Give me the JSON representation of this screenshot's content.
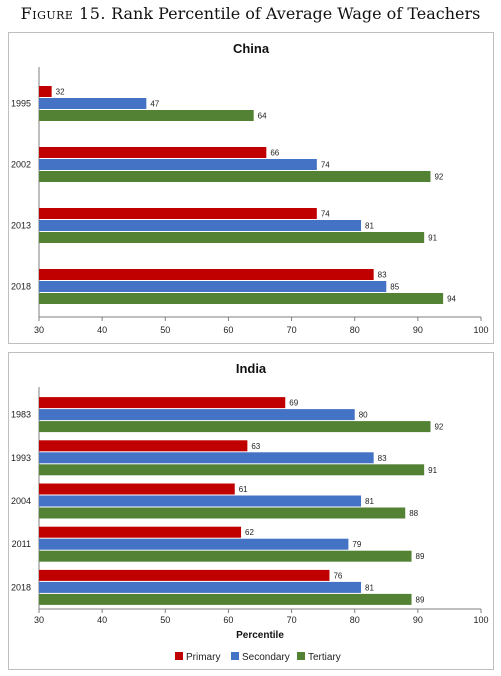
{
  "figure": {
    "label": "Figure 15.",
    "title": "Rank Percentile of Average Wage of Teachers"
  },
  "colors": {
    "primary": "#c00000",
    "secondary": "#4472c4",
    "tertiary": "#548235"
  },
  "chart_data": [
    {
      "type": "bar",
      "orientation": "horizontal",
      "title": "China",
      "xlabel": "Percentile",
      "xlim": [
        30,
        100
      ],
      "xticks": [
        30,
        40,
        50,
        60,
        70,
        80,
        90,
        100
      ],
      "categories": [
        "1995",
        "2002",
        "2013",
        "2018"
      ],
      "series": [
        {
          "name": "Primary",
          "color": "#c00000",
          "values": [
            32,
            66,
            74,
            83
          ]
        },
        {
          "name": "Secondary",
          "color": "#4472c4",
          "values": [
            47,
            74,
            81,
            85
          ]
        },
        {
          "name": "Tertiary",
          "color": "#548235",
          "values": [
            64,
            92,
            91,
            94
          ]
        }
      ],
      "legend": "bottom"
    },
    {
      "type": "bar",
      "orientation": "horizontal",
      "title": "India",
      "xlabel": "Percentile",
      "xlim": [
        30,
        100
      ],
      "xticks": [
        30,
        40,
        50,
        60,
        70,
        80,
        90,
        100
      ],
      "categories": [
        "1983",
        "1993",
        "2004",
        "2011",
        "2018"
      ],
      "series": [
        {
          "name": "Primary",
          "color": "#c00000",
          "values": [
            69,
            63,
            61,
            62,
            76
          ]
        },
        {
          "name": "Secondary",
          "color": "#4472c4",
          "values": [
            80,
            83,
            81,
            79,
            81
          ]
        },
        {
          "name": "Tertiary",
          "color": "#548235",
          "values": [
            92,
            91,
            88,
            89,
            89
          ]
        }
      ],
      "legend": "bottom"
    }
  ]
}
